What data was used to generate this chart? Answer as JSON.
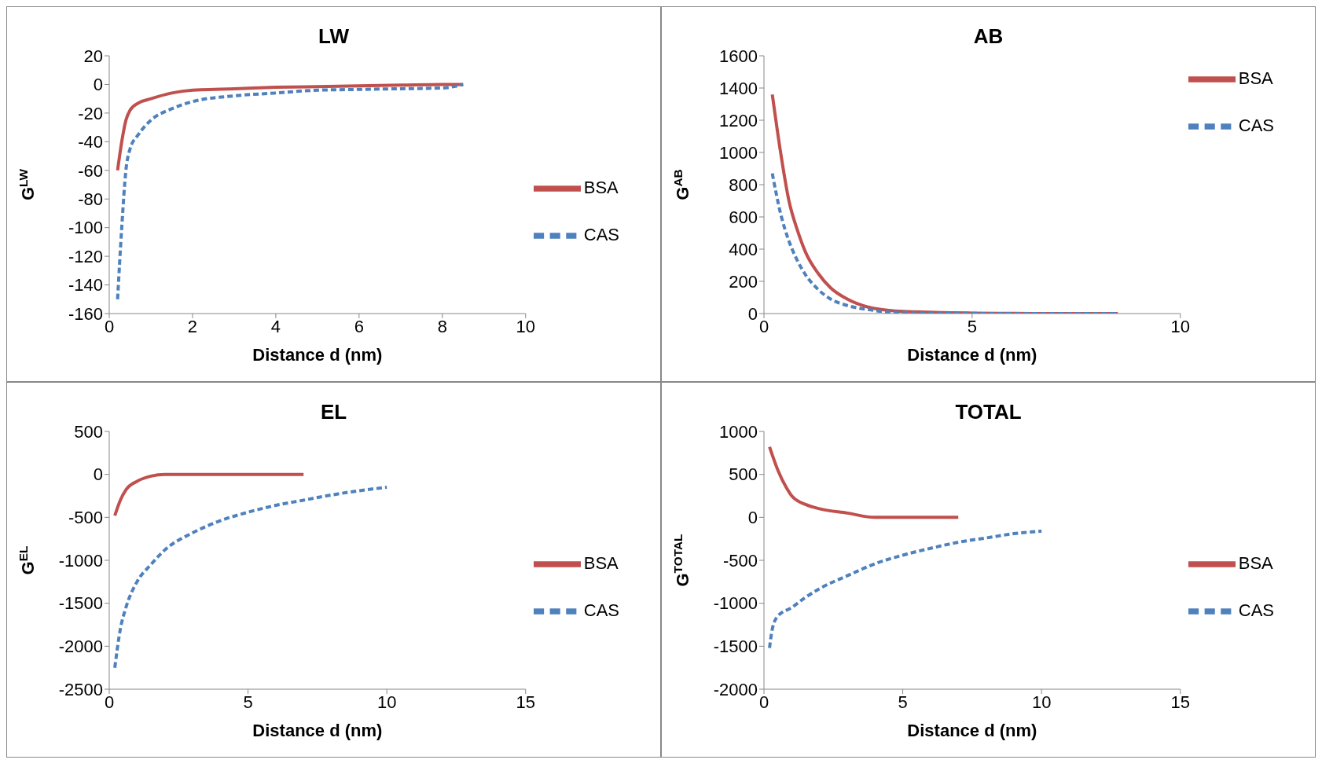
{
  "chart_data": [
    {
      "type": "line",
      "title": "LW",
      "xlabel": "Distance d (nm)",
      "ylabel": "G$^{LW}$",
      "xlim": [
        0,
        10
      ],
      "xticks": [
        0,
        2,
        4,
        6,
        8,
        10
      ],
      "ylim": [
        -160,
        20
      ],
      "yticks": [
        -160,
        -140,
        -120,
        -100,
        -80,
        -60,
        -40,
        -20,
        0,
        20
      ],
      "legend": "right",
      "series": [
        {
          "name": "BSA",
          "color": "#c0504d",
          "line_style": "solid",
          "x": [
            0.2,
            0.3,
            0.4,
            0.5,
            0.7,
            1,
            1.5,
            2,
            3,
            4,
            5,
            6,
            7,
            8,
            8.5
          ],
          "values": [
            -60,
            -40,
            -25,
            -18,
            -13,
            -10,
            -6,
            -4,
            -3,
            -2,
            -1.5,
            -1,
            -0.5,
            0,
            0
          ]
        },
        {
          "name": "CAS",
          "color": "#4f81bd",
          "line_style": "dashed",
          "x": [
            0.2,
            0.3,
            0.4,
            0.5,
            0.7,
            1,
            1.5,
            2,
            3,
            4,
            5,
            6,
            7,
            8,
            8.5
          ],
          "values": [
            -150,
            -100,
            -60,
            -45,
            -35,
            -25,
            -17,
            -12,
            -8,
            -6,
            -4,
            -3.5,
            -3,
            -2.5,
            0
          ]
        }
      ]
    },
    {
      "type": "line",
      "title": "AB",
      "xlabel": "Distance d (nm)",
      "ylabel": "G$^{AB}$",
      "xlim": [
        0,
        10
      ],
      "xticks": [
        0,
        5,
        10
      ],
      "ylim": [
        0,
        1600
      ],
      "yticks": [
        0,
        200,
        400,
        600,
        800,
        1000,
        1200,
        1400,
        1600
      ],
      "legend": "top right",
      "series": [
        {
          "name": "BSA",
          "color": "#c0504d",
          "line_style": "solid",
          "x": [
            0.2,
            0.4,
            0.6,
            0.8,
            1,
            1.3,
            1.6,
            2,
            2.5,
            3,
            4,
            5,
            6,
            7,
            8.5
          ],
          "values": [
            1360,
            1000,
            700,
            520,
            380,
            250,
            160,
            90,
            40,
            20,
            8,
            3,
            1,
            0,
            0
          ]
        },
        {
          "name": "CAS",
          "color": "#4f81bd",
          "line_style": "dashed",
          "x": [
            0.2,
            0.4,
            0.6,
            0.8,
            1,
            1.3,
            1.6,
            2,
            2.5,
            3,
            4,
            5,
            6,
            8.5
          ],
          "values": [
            870,
            620,
            450,
            330,
            240,
            150,
            90,
            50,
            25,
            10,
            4,
            1,
            0,
            0
          ]
        }
      ]
    },
    {
      "type": "line",
      "title": "EL",
      "xlabel": "Distance d (nm)",
      "ylabel": "G$^{EL}$",
      "xlim": [
        0,
        15
      ],
      "xticks": [
        0,
        5,
        10,
        15
      ],
      "ylim": [
        -2500,
        500
      ],
      "yticks": [
        -2500,
        -2000,
        -1500,
        -1000,
        -500,
        0,
        500
      ],
      "legend": "right",
      "series": [
        {
          "name": "BSA",
          "color": "#c0504d",
          "line_style": "solid",
          "x": [
            0.2,
            0.4,
            0.6,
            1,
            1.5,
            2,
            3,
            4,
            5,
            6,
            7
          ],
          "values": [
            -480,
            -300,
            -180,
            -80,
            -20,
            0,
            0,
            0,
            0,
            0,
            0
          ]
        },
        {
          "name": "CAS",
          "color": "#4f81bd",
          "line_style": "dashed",
          "x": [
            0.2,
            0.4,
            0.6,
            1,
            1.5,
            2,
            3,
            4,
            5,
            6,
            7,
            8,
            9,
            10
          ],
          "values": [
            -2250,
            -1800,
            -1550,
            -1250,
            -1050,
            -880,
            -680,
            -540,
            -440,
            -360,
            -300,
            -240,
            -190,
            -150
          ]
        }
      ]
    },
    {
      "type": "line",
      "title": "TOTAL",
      "xlabel": "Distance d (nm)",
      "ylabel": "G$^{TOTAL}$",
      "xlim": [
        0,
        15
      ],
      "xticks": [
        0,
        5,
        10,
        15
      ],
      "ylim": [
        -2000,
        1000
      ],
      "yticks": [
        -2000,
        -1500,
        -1000,
        -500,
        0,
        500,
        1000
      ],
      "legend": "right",
      "series": [
        {
          "name": "BSA",
          "color": "#c0504d",
          "line_style": "solid",
          "x": [
            0.2,
            0.5,
            0.8,
            1,
            1.5,
            2,
            3,
            4,
            5,
            6,
            7
          ],
          "values": [
            820,
            550,
            350,
            250,
            150,
            100,
            50,
            0,
            0,
            0,
            0
          ]
        },
        {
          "name": "CAS",
          "color": "#4f81bd",
          "line_style": "dashed",
          "x": [
            0.2,
            0.3,
            0.5,
            1,
            1.5,
            2,
            3,
            4,
            5,
            6,
            7,
            8,
            9,
            10
          ],
          "values": [
            -1520,
            -1300,
            -1150,
            -1050,
            -930,
            -830,
            -680,
            -540,
            -440,
            -360,
            -290,
            -240,
            -190,
            -160
          ]
        }
      ]
    }
  ]
}
